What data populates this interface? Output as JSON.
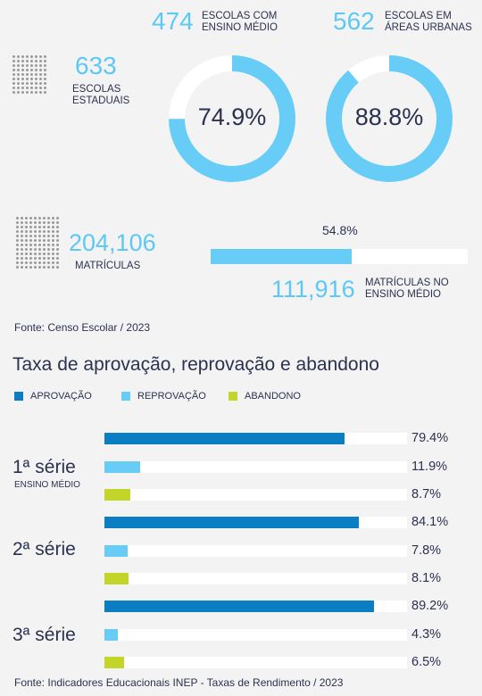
{
  "colors": {
    "aprovacao": "#0b7dc2",
    "reprovacao": "#67cdf7",
    "abandono": "#c4d52a",
    "track": "#ffffff",
    "accent": "#5cc8f5"
  },
  "stats": {
    "escolas_medio": {
      "number": "474",
      "label_line1": "ESCOLAS COM",
      "label_line2": "ENSINO MÉDIO",
      "percent": 74.9,
      "percent_text": "74.9%"
    },
    "escolas_urbanas": {
      "number": "562",
      "label_line1": "ESCOLAS EM",
      "label_line2": "ÁREAS URBANAS",
      "percent": 88.8,
      "percent_text": "88.8%"
    },
    "escolas_estaduais": {
      "number": "633",
      "label_line1": "ESCOLAS",
      "label_line2": "ESTADUAIS"
    },
    "matriculas": {
      "number": "204,106",
      "label": "MATRÍCULAS"
    },
    "matriculas_medio": {
      "number": "111,916",
      "label_line1": "MATRÍCULAS NO",
      "label_line2": "ENSINO MÉDIO",
      "percent": 54.8,
      "percent_text": "54.8%"
    }
  },
  "fonte1": "Fonte: Censo Escolar / 2023",
  "section_title": "Taxa de aprovação, reprovação e abandono",
  "legend": [
    "APROVAÇÃO",
    "REPROVAÇÃO",
    "ABANDONO"
  ],
  "chart_data": {
    "type": "bar",
    "title": "Taxa de aprovação, reprovação e abandono",
    "xlim": [
      0,
      100
    ],
    "groups": [
      {
        "label": "1ª série",
        "sublabel": "ENSINO MÉDIO",
        "values": [
          79.4,
          11.9,
          8.7
        ],
        "labels": [
          "79.4%",
          "11.9%",
          "8.7%"
        ]
      },
      {
        "label": "2ª série",
        "sublabel": "",
        "values": [
          84.1,
          7.8,
          8.1
        ],
        "labels": [
          "84.1%",
          "7.8%",
          "8.1%"
        ]
      },
      {
        "label": "3ª série",
        "sublabel": "",
        "values": [
          89.2,
          4.3,
          6.5
        ],
        "labels": [
          "89.2%",
          "4.3%",
          "6.5%"
        ]
      }
    ],
    "series": [
      {
        "name": "APROVAÇÃO"
      },
      {
        "name": "REPROVAÇÃO"
      },
      {
        "name": "ABANDONO"
      }
    ]
  },
  "fonte2": "Fonte: Indicadores Educacionais INEP - Taxas de Rendimento / 2023"
}
